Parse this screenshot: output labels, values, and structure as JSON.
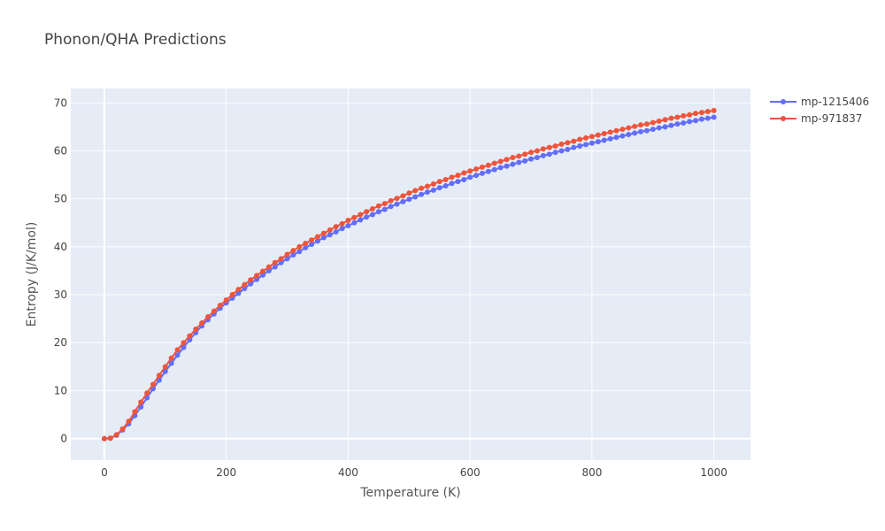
{
  "chart_data": {
    "type": "line",
    "title": "Phonon/QHA Predictions",
    "xlabel": "Temperature (K)",
    "ylabel": "Entropy (J/K/mol)",
    "xlim": [
      -55,
      1060
    ],
    "ylim": [
      -4.5,
      73
    ],
    "x_ticks": [
      0,
      200,
      400,
      600,
      800,
      1000
    ],
    "y_ticks": [
      0,
      10,
      20,
      30,
      40,
      50,
      60,
      70
    ],
    "grid": true,
    "legend_position": "top-right",
    "x": [
      0,
      10,
      20,
      30,
      40,
      50,
      60,
      70,
      80,
      90,
      100,
      110,
      120,
      130,
      140,
      150,
      160,
      170,
      180,
      190,
      200,
      210,
      220,
      230,
      240,
      250,
      260,
      270,
      280,
      290,
      300,
      310,
      320,
      330,
      340,
      350,
      360,
      370,
      380,
      390,
      400,
      410,
      420,
      430,
      440,
      450,
      460,
      470,
      480,
      490,
      500,
      510,
      520,
      530,
      540,
      550,
      560,
      570,
      580,
      590,
      600,
      610,
      620,
      630,
      640,
      650,
      660,
      670,
      680,
      690,
      700,
      710,
      720,
      730,
      740,
      750,
      760,
      770,
      780,
      790,
      800,
      810,
      820,
      830,
      840,
      850,
      860,
      870,
      880,
      890,
      900,
      910,
      920,
      930,
      940,
      950,
      960,
      970,
      980,
      990,
      1000
    ],
    "series": [
      {
        "name": "mp-1215406",
        "color": "#636efa",
        "values": [
          0,
          0.1,
          0.7,
          1.8,
          3.1,
          4.8,
          6.6,
          8.5,
          10.4,
          12.2,
          14.0,
          15.7,
          17.4,
          19.0,
          20.6,
          22.1,
          23.5,
          24.8,
          26.0,
          27.2,
          28.3,
          29.3,
          30.3,
          31.3,
          32.3,
          33.2,
          34.1,
          35.0,
          35.8,
          36.7,
          37.5,
          38.3,
          39.0,
          39.8,
          40.5,
          41.2,
          41.9,
          42.5,
          43.1,
          43.8,
          44.4,
          45.0,
          45.6,
          46.2,
          46.7,
          47.3,
          47.8,
          48.4,
          48.9,
          49.4,
          49.9,
          50.4,
          50.9,
          51.4,
          51.8,
          52.3,
          52.7,
          53.2,
          53.6,
          54.0,
          54.5,
          54.9,
          55.3,
          55.7,
          56.1,
          56.5,
          56.8,
          57.2,
          57.6,
          57.9,
          58.3,
          58.6,
          59.0,
          59.3,
          59.7,
          60.0,
          60.3,
          60.7,
          61.0,
          61.3,
          61.6,
          61.9,
          62.2,
          62.5,
          62.8,
          63.1,
          63.4,
          63.7,
          64.0,
          64.2,
          64.5,
          64.8,
          65.0,
          65.3,
          65.6,
          65.8,
          66.1,
          66.3,
          66.6,
          66.8,
          67.0
        ]
      },
      {
        "name": "mp-971837",
        "color": "#ef553b",
        "values": [
          0,
          0.1,
          0.8,
          2.0,
          3.6,
          5.6,
          7.6,
          9.5,
          11.3,
          13.2,
          15.0,
          16.8,
          18.5,
          20.0,
          21.4,
          22.8,
          24.1,
          25.4,
          26.6,
          27.8,
          28.9,
          30.0,
          31.1,
          32.1,
          33.1,
          34.0,
          34.9,
          35.8,
          36.7,
          37.5,
          38.4,
          39.2,
          40.0,
          40.7,
          41.4,
          42.1,
          42.8,
          43.5,
          44.2,
          44.8,
          45.5,
          46.1,
          46.7,
          47.3,
          47.9,
          48.5,
          49.0,
          49.6,
          50.1,
          50.6,
          51.2,
          51.7,
          52.2,
          52.6,
          53.1,
          53.6,
          54.0,
          54.5,
          54.9,
          55.4,
          55.8,
          56.2,
          56.6,
          57.0,
          57.4,
          57.8,
          58.2,
          58.6,
          58.9,
          59.3,
          59.7,
          60.0,
          60.4,
          60.7,
          61.0,
          61.4,
          61.7,
          62.0,
          62.4,
          62.7,
          63.0,
          63.3,
          63.6,
          63.9,
          64.2,
          64.5,
          64.8,
          65.1,
          65.4,
          65.6,
          65.9,
          66.2,
          66.5,
          66.8,
          67.0,
          67.3,
          67.5,
          67.8,
          68.0,
          68.2,
          68.4
        ]
      }
    ]
  }
}
